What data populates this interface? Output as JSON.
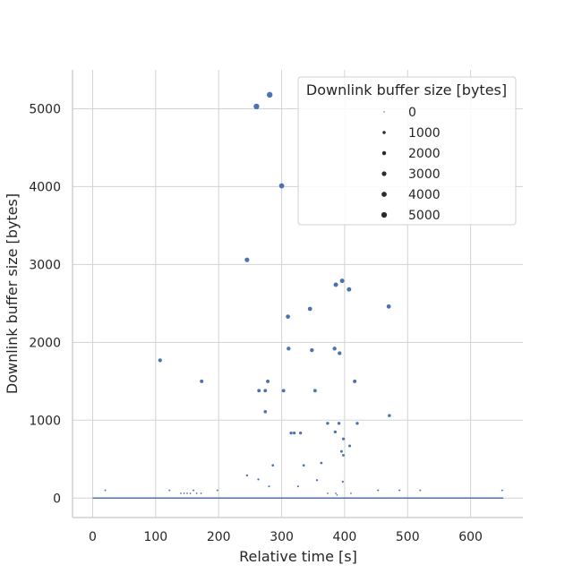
{
  "chart_data": {
    "type": "scatter",
    "title": "",
    "xlabel": "Relative time [s]",
    "ylabel": "Downlink buffer size [bytes]",
    "xlim": [
      -32,
      683
    ],
    "ylim": [
      -250,
      5500
    ],
    "xticks": [
      0,
      100,
      200,
      300,
      400,
      500,
      600
    ],
    "yticks": [
      0,
      1000,
      2000,
      3000,
      4000,
      5000
    ],
    "grid": true,
    "color": "#4c72b0",
    "size_encoding": "Downlink buffer size [bytes]",
    "legend": {
      "title": "Downlink buffer size [bytes]",
      "placement": "top-right",
      "entries": [
        "0",
        "1000",
        "2000",
        "3000",
        "4000",
        "5000"
      ]
    },
    "baseline_segment": {
      "x": [
        0,
        652
      ],
      "y": 0
    },
    "points": [
      {
        "x": 260,
        "y": 5030
      },
      {
        "x": 281,
        "y": 5180
      },
      {
        "x": 300,
        "y": 4010
      },
      {
        "x": 245,
        "y": 3060
      },
      {
        "x": 396,
        "y": 2790
      },
      {
        "x": 386,
        "y": 2740
      },
      {
        "x": 407,
        "y": 2680
      },
      {
        "x": 470,
        "y": 2460
      },
      {
        "x": 345,
        "y": 2430
      },
      {
        "x": 310,
        "y": 2330
      },
      {
        "x": 311,
        "y": 1920
      },
      {
        "x": 348,
        "y": 1900
      },
      {
        "x": 384,
        "y": 1920
      },
      {
        "x": 392,
        "y": 1860
      },
      {
        "x": 107,
        "y": 1770
      },
      {
        "x": 173,
        "y": 1500
      },
      {
        "x": 278,
        "y": 1500
      },
      {
        "x": 416,
        "y": 1500
      },
      {
        "x": 264,
        "y": 1380
      },
      {
        "x": 274,
        "y": 1380
      },
      {
        "x": 303,
        "y": 1380
      },
      {
        "x": 353,
        "y": 1380
      },
      {
        "x": 274,
        "y": 1110
      },
      {
        "x": 471,
        "y": 1060
      },
      {
        "x": 373,
        "y": 960
      },
      {
        "x": 391,
        "y": 960
      },
      {
        "x": 420,
        "y": 960
      },
      {
        "x": 385,
        "y": 850
      },
      {
        "x": 315,
        "y": 835
      },
      {
        "x": 320,
        "y": 835
      },
      {
        "x": 330,
        "y": 835
      },
      {
        "x": 398,
        "y": 760
      },
      {
        "x": 408,
        "y": 670
      },
      {
        "x": 395,
        "y": 600
      },
      {
        "x": 398,
        "y": 550
      },
      {
        "x": 363,
        "y": 450
      },
      {
        "x": 286,
        "y": 420
      },
      {
        "x": 335,
        "y": 420
      },
      {
        "x": 245,
        "y": 290
      },
      {
        "x": 263,
        "y": 240
      },
      {
        "x": 356,
        "y": 230
      },
      {
        "x": 397,
        "y": 210
      },
      {
        "x": 280,
        "y": 150
      },
      {
        "x": 326,
        "y": 150
      },
      {
        "x": 20,
        "y": 100
      },
      {
        "x": 122,
        "y": 100
      },
      {
        "x": 160,
        "y": 100
      },
      {
        "x": 198,
        "y": 100
      },
      {
        "x": 453,
        "y": 100
      },
      {
        "x": 487,
        "y": 100
      },
      {
        "x": 520,
        "y": 100
      },
      {
        "x": 650,
        "y": 100
      },
      {
        "x": 140,
        "y": 60
      },
      {
        "x": 145,
        "y": 60
      },
      {
        "x": 150,
        "y": 60
      },
      {
        "x": 155,
        "y": 60
      },
      {
        "x": 165,
        "y": 60
      },
      {
        "x": 172,
        "y": 60
      },
      {
        "x": 373,
        "y": 60
      },
      {
        "x": 386,
        "y": 60
      },
      {
        "x": 388,
        "y": 40
      },
      {
        "x": 410,
        "y": 60
      }
    ]
  }
}
